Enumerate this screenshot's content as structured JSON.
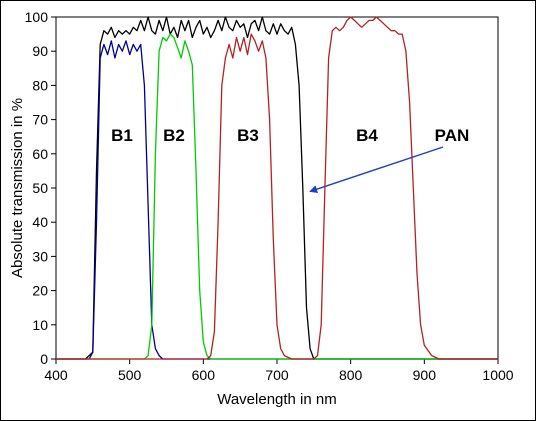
{
  "chart_data": {
    "type": "line",
    "xlabel": "Wavelength in nm",
    "ylabel": "Absolute transmission in %",
    "xlim": [
      400,
      1000
    ],
    "ylim": [
      0,
      100
    ],
    "x_ticks": [
      "400",
      "500",
      "600",
      "700",
      "800",
      "900",
      "1000"
    ],
    "y_ticks": [
      "0",
      "10",
      "20",
      "30",
      "40",
      "50",
      "60",
      "70",
      "80",
      "90",
      "100"
    ],
    "grid": false,
    "legend": "none",
    "annotations": {
      "B1": "B1",
      "B2": "B2",
      "B3": "B3",
      "B4": "B4",
      "PAN": "PAN"
    },
    "pan_arrow_target": {
      "x": 745,
      "y": 49
    },
    "series": [
      {
        "key": "PAN",
        "color": "#000000",
        "points": [
          [
            400,
            0
          ],
          [
            440,
            0
          ],
          [
            450,
            2
          ],
          [
            455,
            55
          ],
          [
            460,
            92
          ],
          [
            465,
            96
          ],
          [
            470,
            95
          ],
          [
            475,
            97
          ],
          [
            480,
            94
          ],
          [
            485,
            96
          ],
          [
            490,
            95
          ],
          [
            495,
            96
          ],
          [
            500,
            95
          ],
          [
            505,
            97
          ],
          [
            510,
            96
          ],
          [
            515,
            99
          ],
          [
            520,
            96
          ],
          [
            525,
            100
          ],
          [
            530,
            96
          ],
          [
            535,
            95
          ],
          [
            540,
            99
          ],
          [
            545,
            96
          ],
          [
            550,
            100
          ],
          [
            555,
            95
          ],
          [
            560,
            97
          ],
          [
            565,
            94
          ],
          [
            570,
            99
          ],
          [
            575,
            96
          ],
          [
            580,
            99
          ],
          [
            585,
            94
          ],
          [
            590,
            97
          ],
          [
            595,
            99
          ],
          [
            600,
            95
          ],
          [
            605,
            97
          ],
          [
            610,
            94
          ],
          [
            615,
            96
          ],
          [
            620,
            99
          ],
          [
            625,
            96
          ],
          [
            630,
            100
          ],
          [
            635,
            97
          ],
          [
            640,
            96
          ],
          [
            645,
            99
          ],
          [
            650,
            97
          ],
          [
            655,
            98
          ],
          [
            660,
            94
          ],
          [
            665,
            98
          ],
          [
            670,
            99
          ],
          [
            675,
            96
          ],
          [
            680,
            100
          ],
          [
            685,
            96
          ],
          [
            690,
            95
          ],
          [
            695,
            98
          ],
          [
            700,
            95
          ],
          [
            705,
            98
          ],
          [
            710,
            96
          ],
          [
            715,
            95
          ],
          [
            720,
            97
          ],
          [
            725,
            92
          ],
          [
            730,
            80
          ],
          [
            735,
            50
          ],
          [
            740,
            15
          ],
          [
            745,
            3
          ],
          [
            750,
            0
          ],
          [
            1000,
            0
          ]
        ]
      },
      {
        "key": "B1",
        "color": "#00008b",
        "points": [
          [
            400,
            0
          ],
          [
            445,
            0
          ],
          [
            450,
            2
          ],
          [
            455,
            40
          ],
          [
            460,
            88
          ],
          [
            465,
            92
          ],
          [
            470,
            89
          ],
          [
            475,
            93
          ],
          [
            480,
            88
          ],
          [
            485,
            92
          ],
          [
            490,
            90
          ],
          [
            495,
            93
          ],
          [
            500,
            89
          ],
          [
            505,
            92
          ],
          [
            510,
            90
          ],
          [
            515,
            92
          ],
          [
            520,
            80
          ],
          [
            525,
            45
          ],
          [
            530,
            10
          ],
          [
            535,
            3
          ],
          [
            540,
            1
          ],
          [
            545,
            0
          ],
          [
            1000,
            0
          ]
        ]
      },
      {
        "key": "B2",
        "color": "#00cc00",
        "points": [
          [
            400,
            0
          ],
          [
            520,
            0
          ],
          [
            525,
            1
          ],
          [
            530,
            10
          ],
          [
            535,
            60
          ],
          [
            540,
            90
          ],
          [
            545,
            94
          ],
          [
            550,
            93
          ],
          [
            555,
            95
          ],
          [
            560,
            94
          ],
          [
            565,
            91
          ],
          [
            570,
            88
          ],
          [
            575,
            93
          ],
          [
            580,
            90
          ],
          [
            585,
            86
          ],
          [
            590,
            55
          ],
          [
            595,
            20
          ],
          [
            600,
            5
          ],
          [
            605,
            1
          ],
          [
            610,
            0
          ],
          [
            1000,
            0
          ]
        ]
      },
      {
        "key": "B3",
        "color": "#b22222",
        "points": [
          [
            400,
            0
          ],
          [
            605,
            0
          ],
          [
            610,
            1
          ],
          [
            615,
            8
          ],
          [
            620,
            40
          ],
          [
            625,
            80
          ],
          [
            630,
            88
          ],
          [
            635,
            92
          ],
          [
            640,
            88
          ],
          [
            645,
            94
          ],
          [
            650,
            90
          ],
          [
            655,
            94
          ],
          [
            660,
            89
          ],
          [
            665,
            95
          ],
          [
            670,
            93
          ],
          [
            675,
            90
          ],
          [
            680,
            93
          ],
          [
            685,
            88
          ],
          [
            690,
            70
          ],
          [
            695,
            35
          ],
          [
            700,
            10
          ],
          [
            705,
            3
          ],
          [
            710,
            1
          ],
          [
            720,
            0
          ],
          [
            750,
            0
          ],
          [
            755,
            1
          ],
          [
            760,
            10
          ],
          [
            765,
            50
          ],
          [
            770,
            88
          ],
          [
            775,
            96
          ],
          [
            780,
            97
          ],
          [
            785,
            96
          ],
          [
            790,
            97
          ],
          [
            795,
            99
          ],
          [
            800,
            100
          ],
          [
            805,
            99
          ],
          [
            810,
            98
          ],
          [
            815,
            97
          ],
          [
            820,
            98
          ],
          [
            825,
            99
          ],
          [
            830,
            99
          ],
          [
            835,
            100
          ],
          [
            840,
            99
          ],
          [
            845,
            98
          ],
          [
            850,
            97
          ],
          [
            855,
            96
          ],
          [
            860,
            96
          ],
          [
            865,
            95
          ],
          [
            870,
            95
          ],
          [
            875,
            90
          ],
          [
            880,
            75
          ],
          [
            885,
            50
          ],
          [
            890,
            25
          ],
          [
            895,
            10
          ],
          [
            900,
            4
          ],
          [
            910,
            1
          ],
          [
            920,
            0
          ],
          [
            1000,
            0
          ]
        ]
      }
    ]
  }
}
